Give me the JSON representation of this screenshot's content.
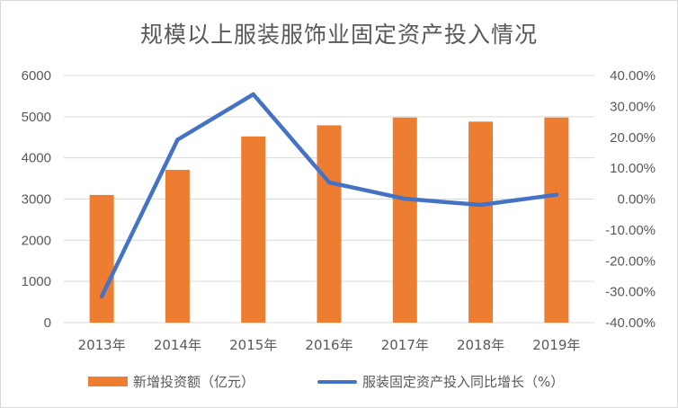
{
  "chart_data": {
    "type": "bar+line",
    "title": "规模以上服装服饰业固定资产投入情况",
    "categories": [
      "2013年",
      "2014年",
      "2015年",
      "2016年",
      "2017年",
      "2018年",
      "2019年"
    ],
    "series": [
      {
        "name": "新增投资额（亿元）",
        "type": "bar",
        "axis": "left",
        "color": "#ED7D31",
        "values": [
          3100,
          3710,
          4520,
          4790,
          4980,
          4880,
          4980
        ]
      },
      {
        "name": "服装固定资产投入同比增长（%）",
        "type": "line",
        "axis": "right",
        "color": "#4472C4",
        "values": [
          -31.5,
          19.2,
          33.9,
          5.4,
          0.1,
          -1.9,
          1.4
        ]
      }
    ],
    "y_left": {
      "min": 0,
      "max": 6000,
      "ticks": [
        "0",
        "1000",
        "2000",
        "3000",
        "4000",
        "5000",
        "6000"
      ]
    },
    "y_right": {
      "min": -40,
      "max": 40,
      "ticks": [
        "-40.00%",
        "-30.00%",
        "-20.00%",
        "-10.00%",
        "0.00%",
        "10.00%",
        "20.00%",
        "30.00%",
        "40.00%"
      ]
    },
    "grid": true,
    "legend_position": "bottom"
  }
}
